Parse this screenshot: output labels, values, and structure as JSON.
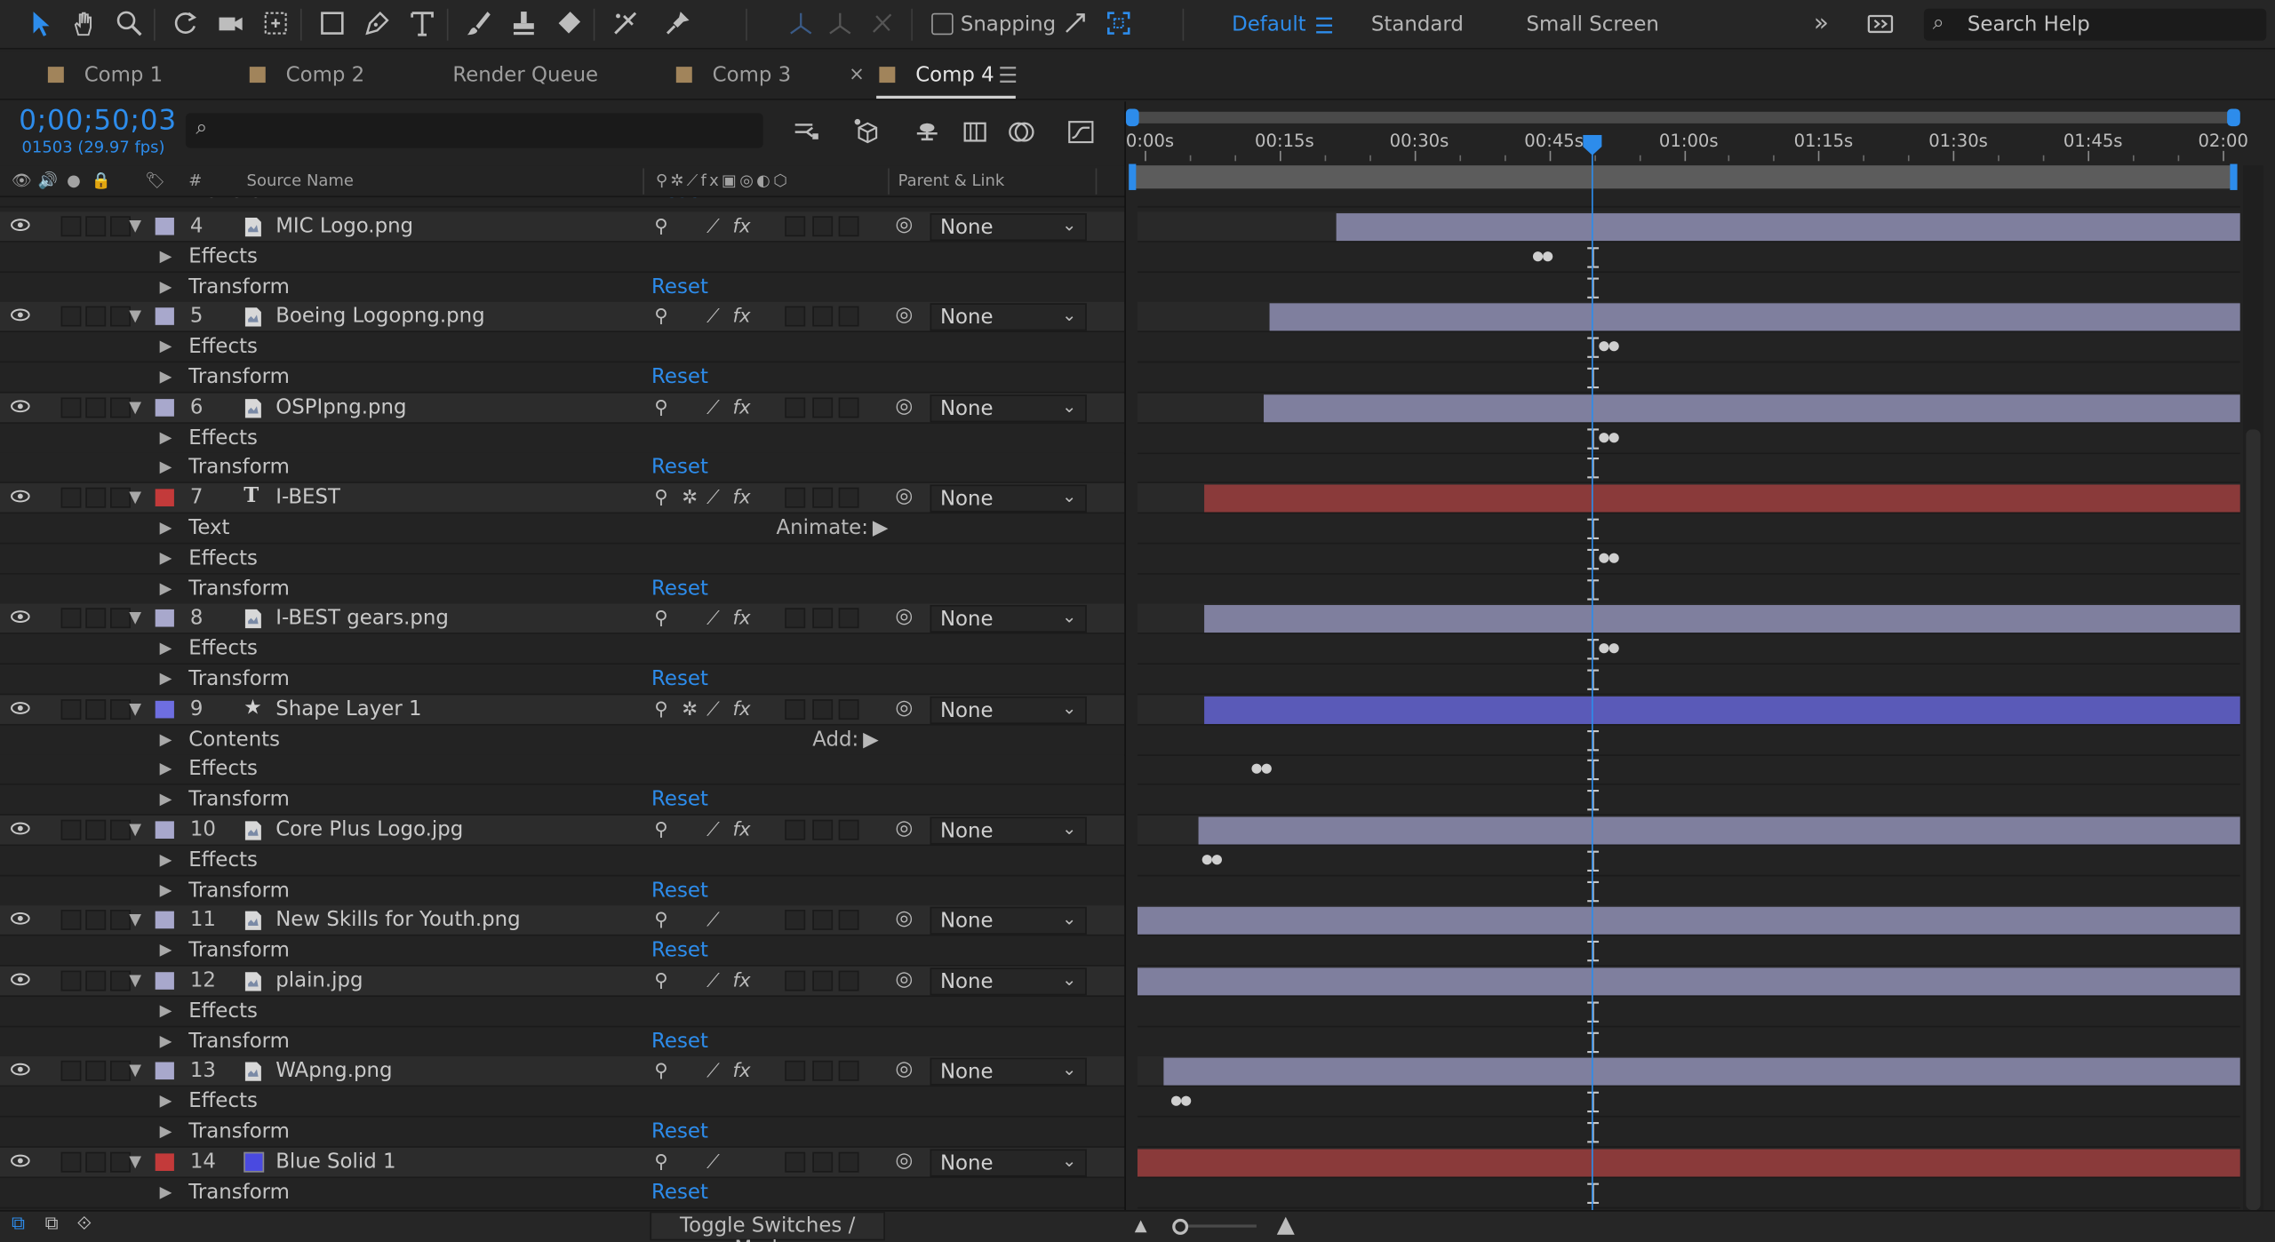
{
  "toolbar": {
    "snapping_label": "Snapping",
    "workspaces": [
      "Default",
      "Standard",
      "Small Screen"
    ],
    "search_placeholder": "Search Help",
    "accent_color": "#2d8ceb"
  },
  "tabs": {
    "items": [
      "Comp 1",
      "Comp 2",
      "Render Queue",
      "Comp 3",
      "Comp 4"
    ],
    "close_glyph": "×",
    "menu_glyph": "☰"
  },
  "timeline": {
    "timecode": "0;00;50;03",
    "frames": "01503 (29.97 fps)",
    "columns": {
      "number": "#",
      "source_name": "Source Name",
      "parent_link": "Parent & Link"
    },
    "ruler": [
      "0:00s",
      "00:15s",
      "00:30s",
      "00:45s",
      "01:00s",
      "01:15s",
      "01:30s",
      "01:45s",
      "02:00"
    ],
    "playhead_seconds": 50.1
  },
  "layers": [
    {
      "num": "4",
      "name": "MIC Logo.png",
      "label_color": "#a8a8cc",
      "type": "file",
      "parent": "None",
      "props": [
        "Effects",
        "Transform"
      ],
      "bar": {
        "start": 0.18,
        "end": 1.0,
        "color": "#7f7f9e"
      },
      "effect_dots": 0.35
    },
    {
      "num": "5",
      "name": "Boeing Logopng.png",
      "label_color": "#a8a8cc",
      "type": "file",
      "parent": "None",
      "props": [
        "Effects",
        "Transform"
      ],
      "bar": {
        "start": 0.12,
        "end": 1.0,
        "color": "#7f7f9e"
      },
      "effect_dots": 0.41
    },
    {
      "num": "6",
      "name": "OSPIpng.png",
      "label_color": "#a8a8cc",
      "type": "file",
      "parent": "None",
      "props": [
        "Effects",
        "Transform"
      ],
      "bar": {
        "start": 0.115,
        "end": 1.0,
        "color": "#7f7f9e"
      },
      "effect_dots": 0.41
    },
    {
      "num": "7",
      "name": "I-BEST",
      "label_color": "#c33a3a",
      "type": "text",
      "parent": "None",
      "props": [
        "Text",
        "Effects",
        "Transform"
      ],
      "animate_label": "Animate:",
      "bar": {
        "start": 0.06,
        "end": 1.0,
        "color": "#8a3a3a"
      },
      "effect_dots": 0.41
    },
    {
      "num": "8",
      "name": "I-BEST gears.png",
      "label_color": "#a8a8cc",
      "type": "file",
      "parent": "None",
      "props": [
        "Effects",
        "Transform"
      ],
      "bar": {
        "start": 0.06,
        "end": 1.0,
        "color": "#7f7f9e"
      },
      "effect_dots": 0.41
    },
    {
      "num": "9",
      "name": "Shape Layer 1",
      "label_color": "#6e6ee0",
      "type": "shape",
      "parent": "None",
      "props": [
        "Contents",
        "Effects",
        "Transform"
      ],
      "animate_label": "Add:",
      "bar": {
        "start": 0.06,
        "end": 1.0,
        "color": "#5a5ab8"
      },
      "effect_dots": 0.095
    },
    {
      "num": "10",
      "name": "Core Plus Logo.jpg",
      "label_color": "#a8a8cc",
      "type": "file",
      "parent": "None",
      "props": [
        "Effects",
        "Transform"
      ],
      "bar": {
        "start": 0.055,
        "end": 1.0,
        "color": "#7f7f9e"
      },
      "effect_dots": 0.05
    },
    {
      "num": "11",
      "name": "New Skills for Youth.png",
      "label_color": "#a8a8cc",
      "type": "file",
      "parent": "None",
      "props": [
        "Transform"
      ],
      "bar": {
        "start": 0.0,
        "end": 1.0,
        "color": "#7f7f9e"
      }
    },
    {
      "num": "12",
      "name": "plain.jpg",
      "label_color": "#a8a8cc",
      "type": "file",
      "parent": "None",
      "props": [
        "Effects",
        "Transform"
      ],
      "bar": {
        "start": 0.0,
        "end": 1.0,
        "color": "#7f7f9e"
      }
    },
    {
      "num": "13",
      "name": "WApng.png",
      "label_color": "#a8a8cc",
      "type": "file",
      "parent": "None",
      "props": [
        "Effects",
        "Transform"
      ],
      "bar": {
        "start": 0.024,
        "end": 1.0,
        "color": "#7f7f9e"
      },
      "effect_dots": 0.022
    },
    {
      "num": "14",
      "name": "Blue Solid 1",
      "label_color": "#c33a3a",
      "type": "solid",
      "solid_color": "#4a4ae0",
      "parent": "None",
      "props": [
        "Transform"
      ],
      "bar": {
        "start": 0.0,
        "end": 1.0,
        "color": "#8a3a3a"
      }
    }
  ],
  "labels": {
    "reset": "Reset",
    "parent_none": "None",
    "partial_row": "Transform",
    "partial_reset": "Reset",
    "toggle_switches": "Toggle Switches / Modes"
  }
}
